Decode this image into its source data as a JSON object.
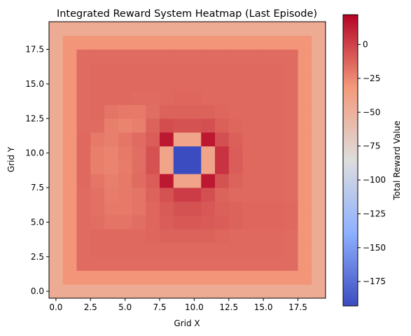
{
  "chart_data": {
    "type": "heatmap",
    "title": "Integrated Reward System Heatmap (Last Episode)",
    "xlabel": "Grid X",
    "ylabel": "Grid Y",
    "colorbar_label": "Total Reward Value",
    "colormap": "coolwarm",
    "xlim": [
      -0.5,
      19.5
    ],
    "ylim": [
      -0.5,
      19.5
    ],
    "xticks": [
      0.0,
      2.5,
      5.0,
      7.5,
      10.0,
      12.5,
      15.0,
      17.5
    ],
    "yticks": [
      0.0,
      2.5,
      5.0,
      7.5,
      10.0,
      12.5,
      15.0,
      17.5
    ],
    "xtick_labels": [
      "0.0",
      "2.5",
      "5.0",
      "7.5",
      "10.0",
      "12.5",
      "15.0",
      "17.5"
    ],
    "ytick_labels": [
      "0.0",
      "2.5",
      "5.0",
      "7.5",
      "10.0",
      "12.5",
      "15.0",
      "17.5"
    ],
    "color_range": [
      -193,
      22
    ],
    "colorbar_ticks": [
      0,
      -25,
      -50,
      -75,
      -100,
      -125,
      -150,
      -175
    ],
    "colorbar_tick_labels": [
      "0",
      "−25",
      "−50",
      "−75",
      "−100",
      "−125",
      "−150",
      "−175"
    ],
    "grid": false,
    "values_row_order": "y = 0 to 19",
    "values": [
      [
        -45,
        -45,
        -45,
        -45,
        -45,
        -45,
        -45,
        -45,
        -45,
        -45,
        -45,
        -45,
        -45,
        -45,
        -45,
        -45,
        -45,
        -45,
        -45,
        -45
      ],
      [
        -45,
        -30,
        -30,
        -30,
        -30,
        -30,
        -30,
        -30,
        -30,
        -30,
        -30,
        -30,
        -30,
        -30,
        -30,
        -30,
        -30,
        -30,
        -30,
        -45
      ],
      [
        -45,
        -30,
        -15,
        -15,
        -15,
        -15,
        -15,
        -15,
        -15,
        -15,
        -15,
        -15,
        -15,
        -15,
        -15,
        -15,
        -15,
        -15,
        -30,
        -45
      ],
      [
        -45,
        -30,
        -15,
        -14,
        -14,
        -14,
        -14,
        -14,
        -14,
        -14,
        -14,
        -14,
        -14,
        -14,
        -14,
        -14,
        -14,
        -15,
        -30,
        -45
      ],
      [
        -45,
        -30,
        -15,
        -14,
        -14,
        -14,
        -14,
        -13,
        -12,
        -12,
        -12,
        -12,
        -13,
        -14,
        -14,
        -14,
        -14,
        -15,
        -30,
        -45
      ],
      [
        -45,
        -30,
        -15,
        -16,
        -18,
        -18,
        -16,
        -13,
        -10,
        -8,
        -8,
        -9,
        -10,
        -12,
        -13,
        -13,
        -13,
        -14,
        -30,
        -45
      ],
      [
        -45,
        -30,
        -15,
        -17,
        -20,
        -20,
        -18,
        -13,
        -9,
        -6,
        -6,
        -8,
        -11,
        -12,
        -13,
        -13,
        -13,
        -14,
        -30,
        -45
      ],
      [
        -45,
        -30,
        -15,
        -17,
        -21,
        -20,
        -18,
        -12,
        -6,
        2,
        2,
        -5,
        -12,
        -14,
        -14,
        -14,
        -14,
        -15,
        -30,
        -45
      ],
      [
        -45,
        -30,
        -14,
        -19,
        -22,
        -20,
        -15,
        -10,
        15,
        -40,
        -40,
        15,
        -6,
        -12,
        -14,
        -14,
        -14,
        -15,
        -30,
        -45
      ],
      [
        -45,
        -30,
        -14,
        -22,
        -24,
        -21,
        -16,
        -6,
        -40,
        -193,
        -193,
        -40,
        5,
        -10,
        -14,
        -14,
        -14,
        -15,
        -30,
        -45
      ],
      [
        -45,
        -30,
        -14,
        -22,
        -24,
        -20,
        -16,
        -6,
        -40,
        -193,
        -193,
        -40,
        5,
        -10,
        -14,
        -14,
        -14,
        -15,
        -30,
        -45
      ],
      [
        -45,
        -30,
        -14,
        -20,
        -22,
        -19,
        -15,
        -10,
        15,
        -40,
        -40,
        15,
        -5,
        -11,
        -14,
        -14,
        -14,
        -15,
        -30,
        -45
      ],
      [
        -45,
        -30,
        -15,
        -15,
        -22,
        -24,
        -22,
        -12,
        -4,
        -6,
        -6,
        -5,
        -11,
        -13,
        -14,
        -14,
        -14,
        -15,
        -30,
        -45
      ],
      [
        -45,
        -30,
        -15,
        -14,
        -18,
        -20,
        -20,
        -16,
        -12,
        -12,
        -12,
        -12,
        -13,
        -14,
        -14,
        -14,
        -14,
        -15,
        -30,
        -45
      ],
      [
        -45,
        -30,
        -15,
        -14,
        -14,
        -14,
        -15,
        -15,
        -14,
        -13,
        -13,
        -14,
        -14,
        -14,
        -14,
        -14,
        -14,
        -15,
        -30,
        -45
      ],
      [
        -45,
        -30,
        -15,
        -14,
        -14,
        -14,
        -14,
        -14,
        -14,
        -14,
        -14,
        -14,
        -14,
        -14,
        -14,
        -14,
        -14,
        -15,
        -30,
        -45
      ],
      [
        -45,
        -30,
        -15,
        -14,
        -14,
        -14,
        -14,
        -14,
        -14,
        -14,
        -14,
        -14,
        -14,
        -14,
        -14,
        -14,
        -14,
        -15,
        -30,
        -45
      ],
      [
        -45,
        -30,
        -15,
        -15,
        -15,
        -15,
        -15,
        -15,
        -15,
        -15,
        -15,
        -15,
        -15,
        -15,
        -15,
        -15,
        -15,
        -15,
        -30,
        -45
      ],
      [
        -45,
        -30,
        -30,
        -30,
        -30,
        -30,
        -30,
        -30,
        -30,
        -30,
        -30,
        -30,
        -30,
        -30,
        -30,
        -30,
        -30,
        -30,
        -30,
        -45
      ],
      [
        -45,
        -45,
        -45,
        -45,
        -45,
        -45,
        -45,
        -45,
        -45,
        -45,
        -45,
        -45,
        -45,
        -45,
        -45,
        -45,
        -45,
        -45,
        -45,
        -45
      ]
    ]
  }
}
